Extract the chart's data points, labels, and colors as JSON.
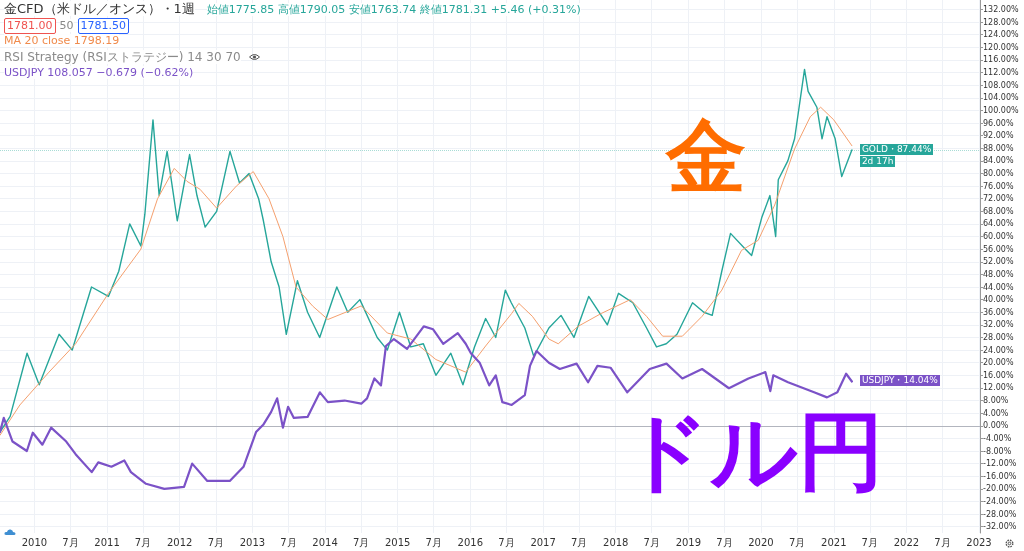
{
  "chart_data": {
    "type": "line",
    "title": "金CFD（米ドル／オンス）・1週",
    "subtitle": "始値1775.85 高値1790.05 安値1763.74 終値1781.31 +5.46 (+0.31%)",
    "annotations": [
      "1781.00",
      "50",
      "1781.50",
      "MA 20 close 1798.19",
      "RSI Strategy (RSIストラテジー) 14 30 70",
      "USDJPY 108.057 −0.679 (−0.62%)",
      "GOLD・87.44%",
      "2d 17h",
      "USDJPY・14.04%",
      "金",
      "ドル円"
    ],
    "xlim": [
      "2009-07-12",
      "2023-01-06"
    ],
    "xticks": [
      {
        "value": "2010-01-01",
        "label": "2010"
      },
      {
        "value": "2010-07-01",
        "label": "7月"
      },
      {
        "value": "2011-01-01",
        "label": "2011"
      },
      {
        "value": "2011-07-01",
        "label": "7月"
      },
      {
        "value": "2012-01-01",
        "label": "2012"
      },
      {
        "value": "2012-07-01",
        "label": "7月"
      },
      {
        "value": "2013-01-01",
        "label": "2013"
      },
      {
        "value": "2013-07-01",
        "label": "7月"
      },
      {
        "value": "2014-01-01",
        "label": "2014"
      },
      {
        "value": "2014-07-01",
        "label": "7月"
      },
      {
        "value": "2015-01-01",
        "label": "2015"
      },
      {
        "value": "2015-07-01",
        "label": "7月"
      },
      {
        "value": "2016-01-01",
        "label": "2016"
      },
      {
        "value": "2016-07-01",
        "label": "7月"
      },
      {
        "value": "2017-01-01",
        "label": "2017"
      },
      {
        "value": "2017-07-01",
        "label": "7月"
      },
      {
        "value": "2018-01-01",
        "label": "2018"
      },
      {
        "value": "2018-07-01",
        "label": "7月"
      },
      {
        "value": "2019-01-01",
        "label": "2019"
      },
      {
        "value": "2019-07-01",
        "label": "7月"
      },
      {
        "value": "2020-01-01",
        "label": "2020"
      },
      {
        "value": "2020-07-01",
        "label": "7月"
      },
      {
        "value": "2021-01-01",
        "label": "2021"
      },
      {
        "value": "2021-07-01",
        "label": "7月"
      },
      {
        "value": "2022-01-01",
        "label": "2022"
      },
      {
        "value": "2022-07-01",
        "label": "7月"
      },
      {
        "value": "2023-01-01",
        "label": "2023"
      }
    ],
    "ylim": [
      -34,
      135
    ],
    "yticks": [
      {
        "value": -32,
        "label": "-32.00%"
      },
      {
        "value": -28,
        "label": "-28.00%"
      },
      {
        "value": -24,
        "label": "-24.00%"
      },
      {
        "value": -20,
        "label": "-20.00%"
      },
      {
        "value": -16,
        "label": "-16.00%"
      },
      {
        "value": -12,
        "label": "-12.00%"
      },
      {
        "value": -8,
        "label": "-8.00%"
      },
      {
        "value": -4,
        "label": "-4.00%"
      },
      {
        "value": 0,
        "label": "0.00%"
      },
      {
        "value": 4,
        "label": "4.00%"
      },
      {
        "value": 8,
        "label": "8.00%"
      },
      {
        "value": 12,
        "label": "12.00%"
      },
      {
        "value": 16,
        "label": "16.00%"
      },
      {
        "value": 20,
        "label": "20.00%"
      },
      {
        "value": 24,
        "label": "24.00%"
      },
      {
        "value": 28,
        "label": "28.00%"
      },
      {
        "value": 32,
        "label": "32.00%"
      },
      {
        "value": 36,
        "label": "36.00%"
      },
      {
        "value": 40,
        "label": "40.00%"
      },
      {
        "value": 44,
        "label": "44.00%"
      },
      {
        "value": 48,
        "label": "48.00%"
      },
      {
        "value": 52,
        "label": "52.00%"
      },
      {
        "value": 56,
        "label": "56.00%"
      },
      {
        "value": 60,
        "label": "60.00%"
      },
      {
        "value": 64,
        "label": "64.00%"
      },
      {
        "value": 68,
        "label": "68.00%"
      },
      {
        "value": 72,
        "label": "72.00%"
      },
      {
        "value": 76,
        "label": "76.00%"
      },
      {
        "value": 80,
        "label": "80.00%"
      },
      {
        "value": 84,
        "label": "84.00%"
      },
      {
        "value": 88,
        "label": "88.00%"
      },
      {
        "value": 92,
        "label": "92.00%"
      },
      {
        "value": 96,
        "label": "96.00%"
      },
      {
        "value": 100,
        "label": "100.00%"
      },
      {
        "value": 104,
        "label": "104.00%"
      },
      {
        "value": 108,
        "label": "108.00%"
      },
      {
        "value": 112,
        "label": "112.00%"
      },
      {
        "value": 116,
        "label": "116.00%"
      },
      {
        "value": 120,
        "label": "120.00%"
      },
      {
        "value": 124,
        "label": "124.00%"
      },
      {
        "value": 128,
        "label": "128.00%"
      },
      {
        "value": 132,
        "label": "132.00%"
      }
    ],
    "grid": true,
    "marker": "none",
    "ref_lines": [
      {
        "axis": "y",
        "value": 0,
        "color": "#b2b5be",
        "line_style": "solid"
      },
      {
        "axis": "y",
        "value": 87.44,
        "color": "#a8dcd5",
        "line_style": "dotted"
      }
    ],
    "series": [
      {
        "color": "#26a69a",
        "x": [
          "2009-07-12",
          "2009-09-01",
          "2009-11-25",
          "2010-01-25",
          "2010-05-05",
          "2010-07-10",
          "2010-10-15",
          "2011-01-08",
          "2011-03-01",
          "2011-04-25",
          "2011-06-20",
          "2011-07-10",
          "2011-08-20",
          "2011-09-20",
          "2011-10-30",
          "2011-12-20",
          "2012-02-20",
          "2012-03-28",
          "2012-05-08",
          "2012-07-05",
          "2012-09-10",
          "2012-10-28",
          "2012-12-15",
          "2013-02-01",
          "2013-02-25",
          "2013-04-05",
          "2013-05-15",
          "2013-06-20",
          "2013-08-15",
          "2013-10-05",
          "2013-12-05",
          "2014-03-01",
          "2014-04-25",
          "2014-06-25",
          "2014-09-20",
          "2014-11-10",
          "2015-01-10",
          "2015-03-08",
          "2015-05-10",
          "2015-07-12",
          "2015-09-25",
          "2015-11-25",
          "2016-01-22",
          "2016-03-18",
          "2016-05-08",
          "2016-06-25",
          "2016-07-25",
          "2016-10-01",
          "2016-11-15",
          "2017-01-30",
          "2017-04-01",
          "2017-06-05",
          "2017-08-18",
          "2017-11-20",
          "2018-01-15",
          "2018-03-28",
          "2018-06-05",
          "2018-07-25",
          "2018-09-12",
          "2018-11-05",
          "2019-01-22",
          "2019-03-20",
          "2019-05-01",
          "2019-06-18",
          "2019-08-01",
          "2019-10-15",
          "2019-11-15",
          "2020-01-05",
          "2020-02-15",
          "2020-03-15",
          "2020-03-28",
          "2020-05-15",
          "2020-06-18",
          "2020-08-07",
          "2020-08-25",
          "2020-10-08",
          "2020-11-03",
          "2020-11-28",
          "2021-01-08",
          "2021-02-10",
          "2021-04-02"
        ],
        "values": [
          -2,
          3,
          23,
          13,
          29,
          24,
          44,
          41,
          49,
          64,
          57,
          67,
          97,
          73,
          87,
          65,
          86,
          73,
          63,
          68,
          87,
          77,
          80,
          72,
          65,
          52,
          44,
          29,
          46,
          36,
          28,
          44,
          36,
          40,
          28,
          24,
          36,
          25,
          26,
          16,
          23,
          13,
          25,
          34,
          28,
          43,
          39,
          31,
          22,
          31,
          35,
          28,
          41,
          32,
          42,
          39,
          31,
          25,
          26,
          29,
          39,
          36,
          35,
          49,
          61,
          56,
          54,
          66,
          73,
          60,
          78,
          84,
          91,
          113,
          106,
          101,
          91,
          98,
          91,
          79,
          87.44
        ]
      },
      {
        "color": "#f5a06e",
        "x": [
          "2009-07-12",
          "2009-10-20",
          "2010-03-15",
          "2010-07-27",
          "2011-01-08",
          "2011-06-20",
          "2011-09-12",
          "2011-12-05",
          "2012-02-07",
          "2012-04-12",
          "2012-07-05",
          "2012-10-12",
          "2013-01-05",
          "2013-03-25",
          "2013-06-03",
          "2013-08-08",
          "2013-10-30",
          "2014-01-15",
          "2014-07-02",
          "2014-11-10",
          "2015-03-08",
          "2015-07-12",
          "2015-12-09",
          "2016-03-18",
          "2016-07-27",
          "2016-09-01",
          "2016-11-08",
          "2017-01-30",
          "2017-03-18",
          "2017-06-25",
          "2017-10-20",
          "2018-03-15",
          "2018-06-05",
          "2018-08-25",
          "2018-12-02",
          "2019-03-11",
          "2019-06-18",
          "2019-09-25",
          "2019-12-18",
          "2020-03-10",
          "2020-06-18",
          "2020-09-05",
          "2020-10-27",
          "2021-01-01",
          "2021-04-02"
        ],
        "values": [
          -3,
          6.6,
          17,
          26,
          42,
          56,
          72,
          81.6,
          77.5,
          75,
          69,
          76,
          80.6,
          72,
          60,
          44,
          38,
          33.7,
          38,
          29.4,
          27.5,
          21,
          17,
          25.3,
          35.6,
          38.8,
          34.7,
          27.5,
          26,
          31.5,
          35.6,
          40,
          34.7,
          28.4,
          28.4,
          34.7,
          43,
          55.6,
          58.8,
          70,
          87.8,
          98,
          101,
          97,
          88.8
        ]
      },
      {
        "color": "#7b52c7",
        "x": [
          "2009-07-12",
          "2009-07-31",
          "2009-09-13",
          "2009-11-24",
          "2009-12-24",
          "2010-02-10",
          "2010-03-26",
          "2010-06-10",
          "2010-07-27",
          "2010-10-16",
          "2010-11-18",
          "2011-01-23",
          "2011-03-29",
          "2011-05-01",
          "2011-07-16",
          "2011-10-16",
          "2012-01-23",
          "2012-03-04",
          "2012-05-19",
          "2012-09-09",
          "2012-11-17",
          "2013-01-19",
          "2013-02-24",
          "2013-04-05",
          "2013-05-05",
          "2013-06-03",
          "2013-06-29",
          "2013-07-28",
          "2013-10-05",
          "2013-12-06",
          "2014-01-15",
          "2014-04-09",
          "2014-07-02",
          "2014-07-31",
          "2014-09-06",
          "2014-10-09",
          "2014-11-03",
          "2014-12-13",
          "2015-02-17",
          "2015-05-12",
          "2015-06-28",
          "2015-08-18",
          "2015-10-30",
          "2015-12-09",
          "2016-01-04",
          "2016-02-17",
          "2016-04-05",
          "2016-05-08",
          "2016-06-10",
          "2016-07-27",
          "2016-10-01",
          "2016-10-27",
          "2016-11-29",
          "2017-01-30",
          "2017-03-26",
          "2017-06-18",
          "2017-08-15",
          "2017-10-01",
          "2017-12-06",
          "2018-02-28",
          "2018-06-21",
          "2018-09-13",
          "2018-12-02",
          "2019-03-11",
          "2019-07-24",
          "2019-10-30",
          "2020-01-23",
          "2020-02-17",
          "2020-03-03",
          "2020-05-16",
          "2020-09-24",
          "2020-11-28",
          "2021-01-19",
          "2021-03-04",
          "2021-04-02"
        ],
        "values": [
          -2,
          2.5,
          -5,
          -8,
          -2.2,
          -6,
          -0.6,
          -5,
          -9,
          -14.7,
          -11.6,
          -13,
          -11,
          -14.7,
          -18.4,
          -20,
          -19.4,
          -12,
          -17.5,
          -17.5,
          -13,
          -2,
          0.3,
          4.4,
          8.7,
          -0.6,
          6,
          2.5,
          2.8,
          10.6,
          7.5,
          8,
          7,
          8.7,
          15,
          12.8,
          25.3,
          27.5,
          24.4,
          31.5,
          30.6,
          26,
          29.4,
          26,
          23,
          20,
          12.8,
          16,
          7.5,
          6.6,
          9.7,
          19,
          23.7,
          20,
          18,
          19.7,
          13.8,
          19,
          18.4,
          10.6,
          18,
          19.7,
          15,
          18,
          11.9,
          15,
          17,
          11,
          16,
          13.8,
          10.6,
          9,
          10.6,
          16.5,
          14.04
        ]
      }
    ]
  }
}
